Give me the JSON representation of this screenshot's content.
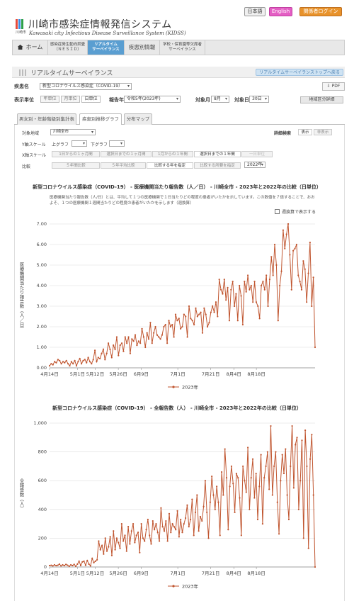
{
  "header": {
    "title": "川崎市感染症情報発信システム",
    "subtitle": "Kawasaki city Infectious Disease Surveillance System (KIDSS)",
    "logo_text": "川崎市",
    "lang_ja": "日本語",
    "lang_en": "English",
    "login": "関係者ログイン"
  },
  "nav": {
    "home": "ホーム",
    "nesid": [
      "感染症発生動向調査",
      "（ＮＥＳＩＤ）"
    ],
    "realtime": [
      "リアルタイム",
      "サーベイランス"
    ],
    "disease": "疾患別情報",
    "school": [
      "学校・保育園等欠席者",
      "サーベイランス"
    ]
  },
  "section": {
    "title": "リアルタイムサーベイランス",
    "top_link": "リアルタイムサーベイランストップへ戻る"
  },
  "controls": {
    "disease_label": "疾患名",
    "disease_value": "新型コロナウイルス感染症（COVID-19）",
    "pdf_label": "PDF",
    "unit_label": "表示単位",
    "unit_year": "年単位",
    "unit_month": "月単位",
    "unit_day": "日単位",
    "report_year_label": "報告年",
    "report_year_value": "令和5年(2023年)",
    "month_label": "対象月",
    "month_value": "8月",
    "day_label": "対象日",
    "day_value": "30日",
    "region_btn": "地域区分詳細"
  },
  "tabs": [
    "男女別・年齢階級別集計表",
    "疾患別推移グラフ",
    "分布マップ"
  ],
  "graph_controls": {
    "region_label": "対象地域",
    "region_value": "川崎全市",
    "detail_label": "詳細検索",
    "show": "表示",
    "hide": "非表示",
    "yscale_label": "Y軸スケール",
    "upper": "上グラフ",
    "lower": "下グラフ",
    "xscale_label": "X軸スケール",
    "xscale_options": [
      "1日からの１ヶ月間",
      "選択日までの１ヶ月間",
      "1月からの１年間",
      "選択日までの１年間",
      "一日単位"
    ],
    "compare_label": "比較",
    "compare_options": [
      "５年間比較",
      "５年平均比較",
      "比較する年を指定",
      "比較する所要を指定"
    ],
    "compare_year": "2022年"
  },
  "chart1_note": "医療機関当たり報告数（人/日）とは、平均して１つの医療機関で１日当たりどの程度の患者がいたかを示しています。この数値を７倍することで、おおよそ、１つの医療機関１週間当たりどの程度の患者がいたかを示します（週換算）",
  "chart1_checkbox": "週換算で表示する",
  "chart_data": [
    {
      "type": "line",
      "title": "新型コロナウイルス感染症（COVID-19） - 医療機関当たり報告数（人／日） - 川崎全市 - 2023年と2022年の比較（日単位）",
      "ylabel": "医療機関当たり報告数（人／日）",
      "xlabel": "",
      "ylim": [
        0,
        7
      ],
      "yticks": [
        "0.00",
        "1.00",
        "2.00",
        "3.00",
        "4.00",
        "5.00",
        "6.00",
        "7.00"
      ],
      "xticks": [
        "4月14日",
        "5月1日",
        "5月12日",
        "5月26日",
        "6月9日",
        "7月1日",
        "7月21日",
        "8月4日",
        "8月18日"
      ],
      "grid": true,
      "legend": "bottom",
      "series": [
        {
          "name": "2023年",
          "color": "#c0552f",
          "values": [
            0.1,
            0.2,
            0.15,
            0.3,
            0.25,
            0.4,
            0.35,
            0.2,
            0.3,
            0.25,
            0.35,
            0.2,
            0.1,
            0.3,
            0.2,
            0.35,
            0.1,
            0.3,
            0.45,
            0.2,
            0.35,
            0.4,
            0.25,
            0.5,
            0.3,
            0.2,
            0.4,
            0.85,
            0.3,
            0.5,
            0.45,
            0.7,
            0.9,
            0.4,
            0.7,
            1.2,
            0.9,
            0.5,
            1.1,
            0.9,
            1.5,
            0.6,
            1.1,
            1.2,
            0.8,
            1.5,
            1.2,
            1.5,
            0.7,
            1.4,
            1.3,
            1.6,
            1.1,
            1.3,
            1.2,
            1.9,
            1.5,
            1.0,
            1.7,
            1.4,
            2.2,
            1.2,
            1.7,
            2.0,
            1.6,
            1.5,
            1.4,
            1.6,
            2.0,
            2.1,
            1.2,
            2.3,
            2.0,
            2.1,
            1.5,
            2.6,
            2.3,
            2.4,
            1.9,
            2.0,
            2.6,
            2.5,
            1.5,
            3.0,
            2.4,
            2.3,
            2.1,
            2.9,
            2.5,
            2.6,
            2.7,
            1.7,
            2.9,
            2.6,
            2.0,
            2.2,
            2.7,
            3.0,
            2.7,
            3.2,
            2.5,
            4.3,
            3.8,
            3.6,
            4.3,
            3.3,
            3.9,
            2.3,
            3.8,
            4.2,
            3.0,
            3.6,
            2.3,
            4.0,
            3.5,
            2.1,
            4.2,
            3.7,
            4.5,
            3.8,
            4.0,
            3.2,
            4.2,
            3.2,
            3.0,
            2.4,
            4.0,
            4.2,
            3.8,
            4.5,
            3.0,
            4.3,
            5.4,
            4.5,
            6.0,
            5.0,
            2.3,
            4.0,
            4.7,
            6.7,
            5.8,
            6.5,
            7.0,
            5.5,
            3.8,
            5.7,
            5.8,
            6.0,
            4.5,
            4.2,
            3.8,
            5.2,
            4.8,
            3.2,
            4.6,
            6.1,
            3.0,
            4.4,
            1.0
          ]
        }
      ]
    },
    {
      "type": "line",
      "title": "新型コロナウイルス感染症（COVID-19） - 全報告数（人） - 川崎全市 - 2023年と2022年の比較（日単位）",
      "ylabel": "全報告数（人）",
      "xlabel": "",
      "ylim": [
        0,
        1000
      ],
      "yticks": [
        "0",
        "200",
        "400",
        "600",
        "800",
        "1,000"
      ],
      "xticks": [
        "4月14日",
        "5月1日",
        "5月12日",
        "5月26日",
        "6月9日",
        "7月1日",
        "7月21日",
        "8月4日",
        "8月18日"
      ],
      "grid": true,
      "legend": "bottom",
      "series": [
        {
          "name": "2023年",
          "color": "#c0552f",
          "values": [
            10,
            12,
            8,
            15,
            10,
            12,
            20,
            8,
            15,
            10,
            18,
            12,
            5,
            15,
            10,
            18,
            5,
            20,
            40,
            10,
            35,
            40,
            12,
            45,
            20,
            8,
            60,
            30,
            40,
            50,
            180,
            120,
            150,
            90,
            200,
            110,
            140,
            210,
            80,
            250,
            120,
            200,
            170,
            130,
            300,
            180,
            220,
            110,
            280,
            160,
            250,
            300,
            170,
            220,
            240,
            100,
            300,
            200,
            180,
            260,
            330,
            220,
            160,
            320,
            260,
            300,
            240,
            180,
            410,
            280,
            250,
            320,
            180,
            370,
            240,
            300,
            280,
            260,
            390,
            210,
            330,
            240,
            300,
            340,
            430,
            280,
            330,
            470,
            220,
            380,
            500,
            250,
            350,
            320,
            420,
            600,
            380,
            200,
            450,
            630,
            500,
            400,
            560,
            450,
            220,
            660,
            500,
            820,
            620,
            260,
            560,
            700,
            580,
            380,
            650,
            620,
            480,
            220,
            700,
            600,
            520,
            830,
            400,
            620,
            750,
            480,
            650,
            330,
            560,
            780,
            300,
            620,
            700,
            800,
            540,
            980,
            500,
            700,
            800,
            450,
            230,
            600,
            780,
            650,
            820,
            500,
            330,
            700,
            980,
            550,
            850,
            900,
            400,
            600,
            880,
            200,
            950,
            700,
            130,
            750,
            920,
            500,
            0
          ]
        }
      ]
    }
  ]
}
